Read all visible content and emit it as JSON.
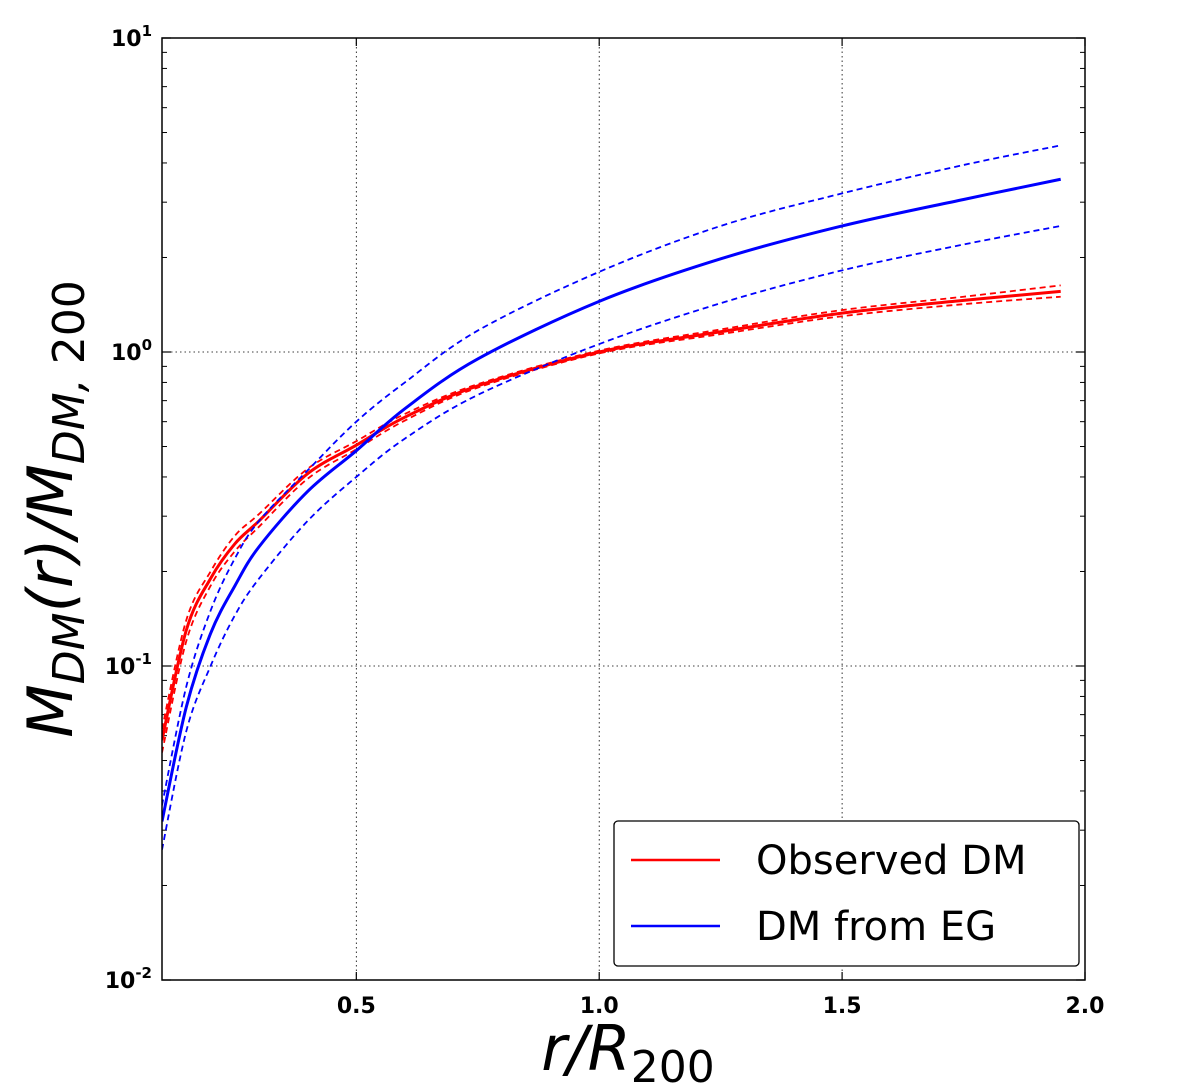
{
  "chart_data": {
    "type": "line",
    "title": "",
    "xlabel": "r/R200",
    "ylabel": "M_DM(r)/M_DM,200",
    "xlim": [
      0.1,
      2.0
    ],
    "ylim": [
      0.01,
      10
    ],
    "yscale": "log",
    "grid": true,
    "legend_position": "bottom-right",
    "x_ticks": [
      {
        "value": 0.5,
        "label": "0.5"
      },
      {
        "value": 1.0,
        "label": "1.0"
      },
      {
        "value": 1.5,
        "label": "1.5"
      },
      {
        "value": 2.0,
        "label": "2.0"
      }
    ],
    "y_ticks": [
      {
        "value": 0.01,
        "base": "10",
        "exp": "-2"
      },
      {
        "value": 0.1,
        "base": "10",
        "exp": "-1"
      },
      {
        "value": 1,
        "base": "10",
        "exp": "0"
      },
      {
        "value": 10,
        "base": "10",
        "exp": "1"
      }
    ],
    "x": [
      0.1,
      0.15,
      0.2,
      0.25,
      0.3,
      0.4,
      0.5,
      0.6,
      0.75,
      1.0,
      1.25,
      1.5,
      1.75,
      1.95
    ],
    "series": [
      {
        "name": "Observed DM",
        "color": "#ff0000",
        "style": "solid",
        "values": [
          0.058,
          0.13,
          0.19,
          0.245,
          0.29,
          0.41,
          0.505,
          0.62,
          0.78,
          1.0,
          1.16,
          1.33,
          1.46,
          1.56
        ]
      },
      {
        "name": "Observed DM upper",
        "color": "#ff0000",
        "style": "dashed",
        "legend": false,
        "values": [
          0.063,
          0.14,
          0.2,
          0.26,
          0.305,
          0.425,
          0.52,
          0.635,
          0.79,
          1.01,
          1.18,
          1.36,
          1.5,
          1.63
        ]
      },
      {
        "name": "Observed DM lower",
        "color": "#ff0000",
        "style": "dashed",
        "legend": false,
        "values": [
          0.053,
          0.12,
          0.18,
          0.232,
          0.278,
          0.395,
          0.49,
          0.605,
          0.77,
          0.99,
          1.14,
          1.3,
          1.42,
          1.5
        ]
      },
      {
        "name": "DM from EG",
        "color": "#0000ff",
        "style": "solid",
        "values": [
          0.032,
          0.074,
          0.127,
          0.18,
          0.24,
          0.36,
          0.485,
          0.66,
          0.95,
          1.45,
          1.98,
          2.52,
          3.06,
          3.55
        ]
      },
      {
        "name": "DM from EG upper",
        "color": "#0000ff",
        "style": "dashed",
        "legend": false,
        "values": [
          0.036,
          0.086,
          0.15,
          0.22,
          0.29,
          0.42,
          0.6,
          0.8,
          1.17,
          1.8,
          2.52,
          3.2,
          3.94,
          4.55
        ]
      },
      {
        "name": "DM from EG lower",
        "color": "#0000ff",
        "style": "dashed",
        "legend": false,
        "values": [
          0.026,
          0.062,
          0.1,
          0.145,
          0.19,
          0.29,
          0.4,
          0.53,
          0.73,
          1.06,
          1.43,
          1.82,
          2.2,
          2.52
        ]
      }
    ],
    "legend": [
      {
        "label": "Observed DM",
        "color": "#ff0000"
      },
      {
        "label": "DM from EG",
        "color": "#0000ff"
      }
    ]
  }
}
